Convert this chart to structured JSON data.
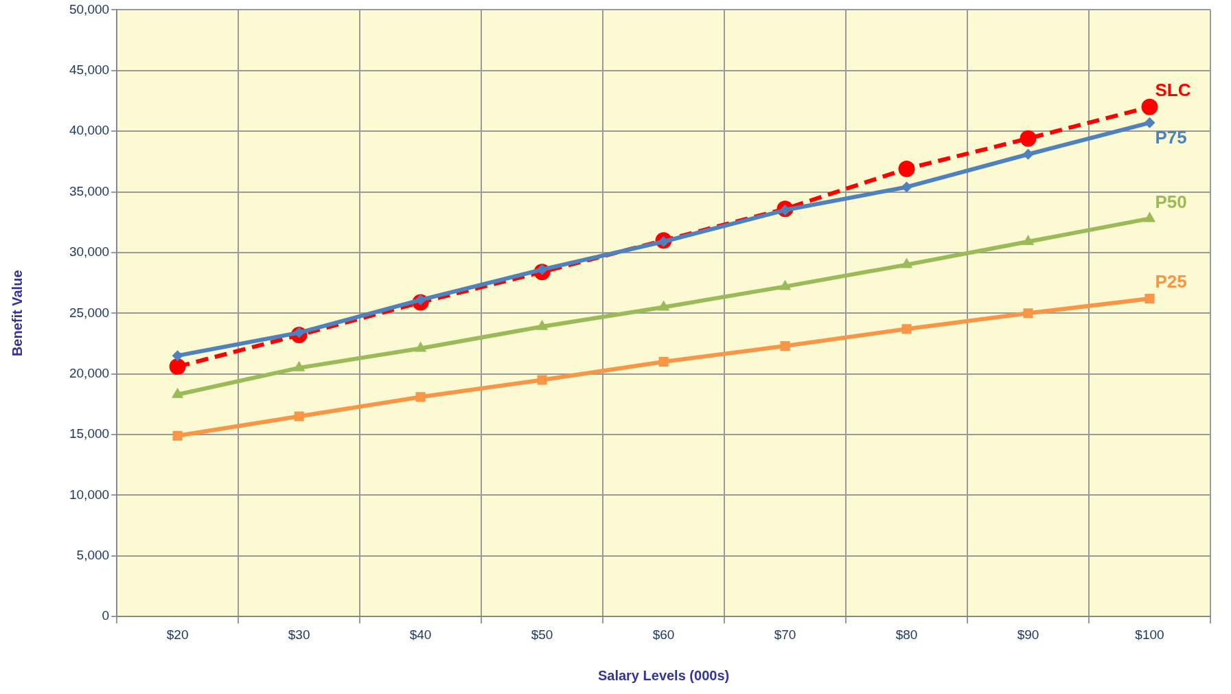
{
  "chart_data": {
    "type": "line",
    "xlabel": "Salary Levels (000s)",
    "ylabel": "Benefit Value",
    "categories": [
      "$20",
      "$30",
      "$40",
      "$50",
      "$60",
      "$70",
      "$80",
      "$90",
      "$100"
    ],
    "series": [
      {
        "name": "SLC",
        "color": "#ff0000",
        "marker": "circle",
        "line_style": "dashed",
        "values": [
          20600,
          23200,
          25900,
          28400,
          31000,
          33600,
          36900,
          39400,
          42000
        ]
      },
      {
        "name": "P75",
        "color": "#4f81bd",
        "marker": "diamond",
        "line_style": "solid",
        "values": [
          21500,
          23400,
          26100,
          28600,
          30900,
          33500,
          35400,
          38100,
          40700
        ]
      },
      {
        "name": "P50",
        "color": "#9bbb59",
        "marker": "triangle",
        "line_style": "solid",
        "values": [
          18300,
          20500,
          22100,
          23900,
          25500,
          27200,
          29000,
          30900,
          32800
        ]
      },
      {
        "name": "P25",
        "color": "#f79646",
        "marker": "square",
        "line_style": "solid",
        "values": [
          14900,
          16500,
          18100,
          19500,
          21000,
          22300,
          23700,
          25000,
          26200
        ]
      }
    ],
    "ylim": [
      0,
      50000
    ],
    "yticks": [
      0,
      {
        "value": 5000,
        "label": "5,000"
      },
      {
        "value": 10000,
        "label": "10,000"
      },
      {
        "value": 15000,
        "label": "15,000"
      },
      {
        "value": 20000,
        "label": "20,000"
      },
      {
        "value": 25000,
        "label": "25,000"
      },
      {
        "value": 30000,
        "label": "30,000"
      },
      {
        "value": 35000,
        "label": "35,000"
      },
      {
        "value": 40000,
        "label": "40,000"
      },
      {
        "value": 45000,
        "label": "45,000"
      },
      {
        "value": 50000,
        "label": "50,000"
      }
    ],
    "grid": true,
    "legend": false
  }
}
